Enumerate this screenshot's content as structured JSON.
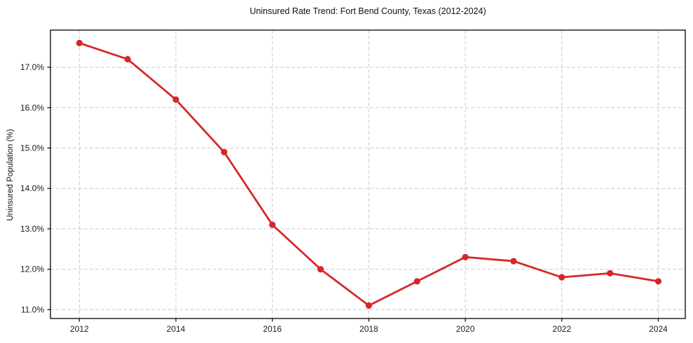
{
  "chart_data": {
    "type": "line",
    "title": "Uninsured Rate Trend: Fort Bend County, Texas (2012-2024)",
    "xlabel": "",
    "ylabel": "Uninsured Population (%)",
    "legend": "none",
    "grid": true,
    "grid_style": "dashed",
    "x": [
      2012,
      2013,
      2014,
      2015,
      2016,
      2017,
      2018,
      2019,
      2020,
      2021,
      2022,
      2023,
      2024
    ],
    "series": [
      {
        "name": "Uninsured Rate",
        "color": "#d62728",
        "marker": "circle",
        "values": [
          17.6,
          17.2,
          16.2,
          14.9,
          13.1,
          12.0,
          11.1,
          11.7,
          12.3,
          12.2,
          11.8,
          11.9,
          11.7
        ]
      }
    ],
    "xticks": {
      "values": [
        2012,
        2014,
        2016,
        2018,
        2020,
        2022,
        2024
      ],
      "labels": [
        "2012",
        "2014",
        "2016",
        "2018",
        "2020",
        "2022",
        "2024"
      ]
    },
    "yticks": {
      "values": [
        11,
        12,
        13,
        14,
        15,
        16,
        17
      ],
      "labels": [
        "11.0%",
        "12.0%",
        "13.0%",
        "14.0%",
        "15.0%",
        "16.0%",
        "17.0%"
      ]
    },
    "xlim": [
      2011.4,
      2024.56
    ],
    "ylim": [
      10.78,
      17.92
    ],
    "colors": {
      "line": "#d62728",
      "grid": "#cccccc",
      "axis": "#000000",
      "background": "#ffffff",
      "text": "#1a1a1a"
    }
  }
}
